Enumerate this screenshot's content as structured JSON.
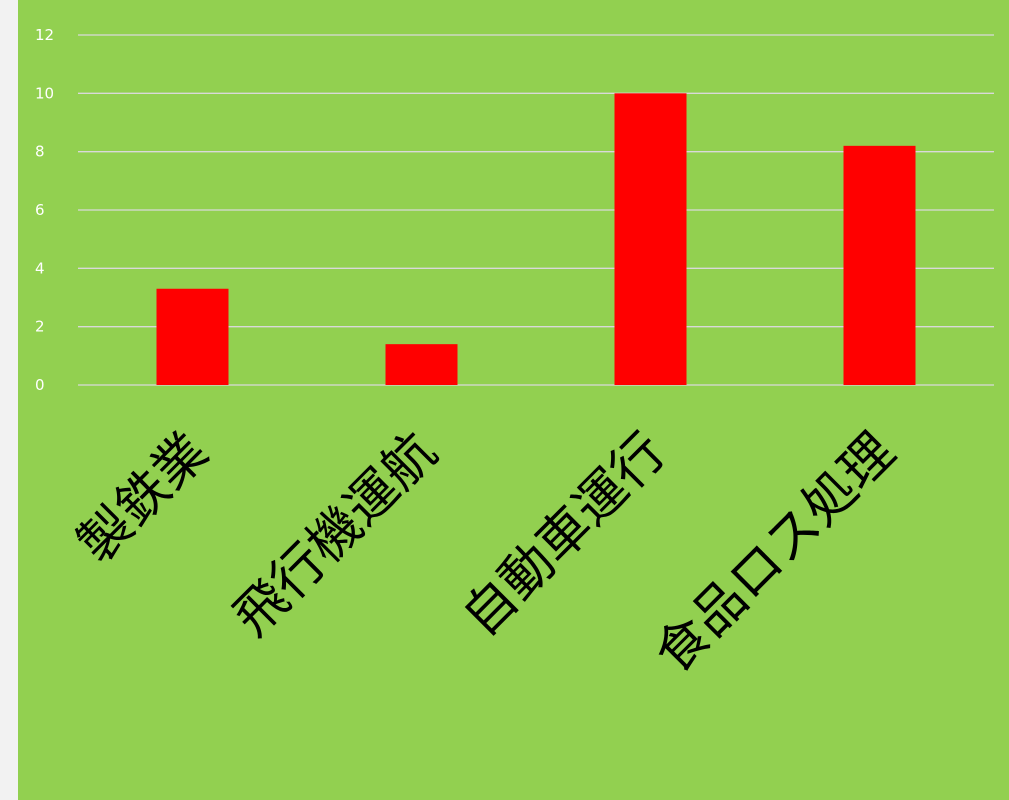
{
  "chart_data": {
    "type": "bar",
    "categories": [
      "製鉄業",
      "飛行機運航",
      "自動車運行",
      "食品ロス処理"
    ],
    "values": [
      3.3,
      1.4,
      10,
      8.2
    ],
    "ylim": [
      0,
      12
    ],
    "yticks": [
      0,
      2,
      4,
      6,
      8,
      10,
      12
    ],
    "grid": true,
    "legend": "none",
    "colors": {
      "background": "#92d050",
      "bar": "#ff0000",
      "gridline": "#d9d9d9",
      "tick_text": "#ffffff",
      "category_text": "#000000"
    }
  }
}
